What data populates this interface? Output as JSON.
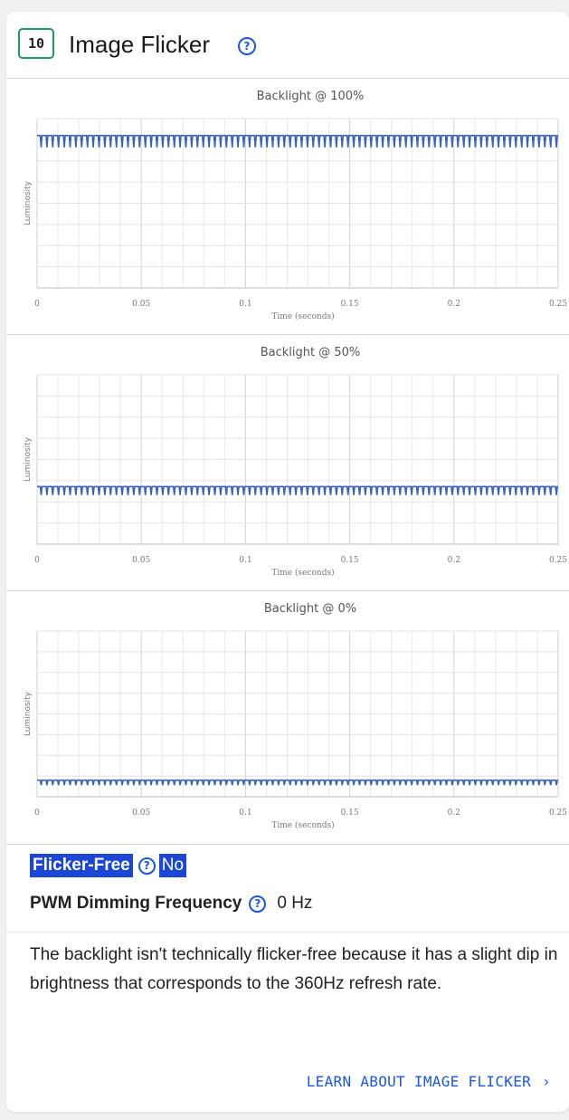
{
  "header": {
    "score": "10",
    "title": "Image Flicker",
    "help_glyph": "?",
    "accent_color": "#1e9c5a",
    "link_color": "#1a56e8"
  },
  "chart_data": [
    {
      "type": "line",
      "title": "Backlight @ 100%",
      "xlabel": "Time (seconds)",
      "ylabel": "Luminosity",
      "x_ticks": [
        "0",
        "0.05",
        "0.1",
        "0.15",
        "0.2",
        "0.25"
      ],
      "xlim": [
        0,
        0.25
      ],
      "ylim": [
        0,
        1
      ],
      "grid": true,
      "series": [
        {
          "level": 0.9,
          "dip_depth": 0.07,
          "dip_frequency_hz": 360,
          "color": "#3b62b8"
        }
      ]
    },
    {
      "type": "line",
      "title": "Backlight @ 50%",
      "xlabel": "Time (seconds)",
      "ylabel": "Luminosity",
      "x_ticks": [
        "0",
        "0.05",
        "0.1",
        "0.15",
        "0.2",
        "0.25"
      ],
      "xlim": [
        0,
        0.25
      ],
      "ylim": [
        0,
        1
      ],
      "grid": true,
      "series": [
        {
          "level": 0.34,
          "dip_depth": 0.05,
          "dip_frequency_hz": 360,
          "color": "#3b62b8"
        }
      ]
    },
    {
      "type": "line",
      "title": "Backlight @ 0%",
      "xlabel": "Time (seconds)",
      "ylabel": "Luminosity",
      "x_ticks": [
        "0",
        "0.05",
        "0.1",
        "0.15",
        "0.2",
        "0.25"
      ],
      "xlim": [
        0,
        0.25
      ],
      "ylim": [
        0,
        1
      ],
      "grid": true,
      "series": [
        {
          "level": 0.1,
          "dip_depth": 0.03,
          "dip_frequency_hz": 360,
          "color": "#3b62b8"
        }
      ]
    }
  ],
  "results": {
    "flicker_free_label": "Flicker-Free",
    "flicker_free_value": "No",
    "pwm_label": "PWM Dimming Frequency",
    "pwm_value": "0 Hz",
    "description": "The backlight isn't technically flicker-free because it has a slight dip in brightness that corresponds to the 360Hz refresh rate.",
    "learn_more": "LEARN ABOUT IMAGE FLICKER",
    "learn_more_chevron": "›",
    "highlight_color": "#1c47d6"
  }
}
